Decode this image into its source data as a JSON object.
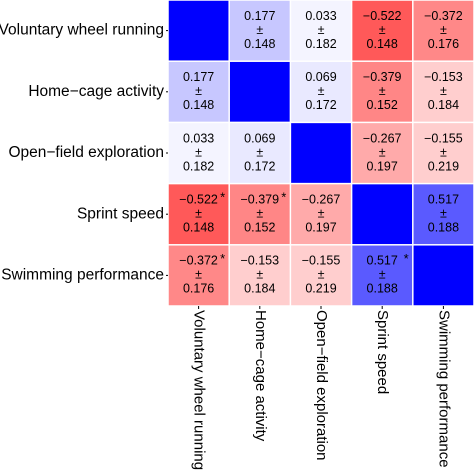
{
  "chart_data": {
    "type": "heatmap",
    "title": "",
    "variables": [
      "Voluntary wheel running",
      "Home−cage activity",
      "Open−field exploration",
      "Sprint speed",
      "Swimming performance"
    ],
    "matrix": [
      [
        null,
        0.177,
        0.033,
        -0.522,
        -0.372
      ],
      [
        0.177,
        null,
        0.069,
        -0.379,
        -0.153
      ],
      [
        0.033,
        0.069,
        null,
        -0.267,
        -0.155
      ],
      [
        -0.522,
        -0.379,
        -0.267,
        null,
        0.517
      ],
      [
        -0.372,
        -0.153,
        -0.155,
        0.517,
        null
      ]
    ],
    "errors": [
      [
        null,
        0.148,
        0.182,
        0.148,
        0.176
      ],
      [
        0.148,
        null,
        0.172,
        0.152,
        0.184
      ],
      [
        0.182,
        0.172,
        null,
        0.197,
        0.219
      ],
      [
        0.148,
        0.152,
        0.197,
        null,
        0.188
      ],
      [
        0.176,
        0.184,
        0.219,
        0.188,
        null
      ]
    ],
    "value_labels": [
      [
        null,
        "0.177",
        "0.033",
        "−0.522",
        "−0.372"
      ],
      [
        "0.177",
        null,
        "0.069",
        "−0.379",
        "−0.153"
      ],
      [
        "0.033",
        "0.069",
        null,
        "−0.267",
        "−0.155"
      ],
      [
        "−0.522",
        "−0.379",
        "−0.267",
        null,
        "0.517"
      ],
      [
        "−0.372",
        "−0.153",
        "−0.155",
        "0.517",
        null
      ]
    ],
    "error_labels": [
      [
        null,
        "0.148",
        "0.182",
        "0.148",
        "0.176"
      ],
      [
        "0.148",
        null,
        "0.172",
        "0.152",
        "0.184"
      ],
      [
        "0.182",
        "0.172",
        null,
        "0.197",
        "0.219"
      ],
      [
        "0.148",
        "0.152",
        "0.197",
        null,
        "0.188"
      ],
      [
        "0.176",
        "0.184",
        "0.219",
        "0.188",
        null
      ]
    ],
    "pm_symbol": "±",
    "significance_symbol": "*",
    "significant": [
      [
        false,
        false,
        false,
        false,
        false
      ],
      [
        false,
        false,
        false,
        false,
        false
      ],
      [
        false,
        false,
        false,
        false,
        false
      ],
      [
        true,
        true,
        false,
        false,
        false
      ],
      [
        true,
        false,
        false,
        true,
        false
      ]
    ],
    "diagonal_color": "#0000ff",
    "positive_color": "#0000ff",
    "negative_color": "#ff0000",
    "grid": true,
    "legend": "none"
  }
}
